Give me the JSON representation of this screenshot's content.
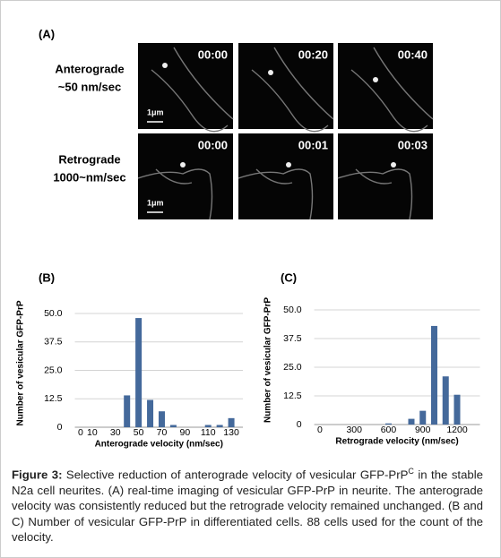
{
  "panel_a": {
    "label": "(A)",
    "rows": [
      {
        "title": [
          "Anterograde",
          "~50 nm/sec"
        ],
        "times": [
          "00:00",
          "00:20",
          "00:40"
        ],
        "scale": "1μm"
      },
      {
        "title": [
          "Retrograde",
          "1000~nm/sec"
        ],
        "times": [
          "00:00",
          "00:01",
          "00:03"
        ],
        "scale": "1μm"
      }
    ]
  },
  "chart_data": [
    {
      "type": "bar",
      "panel": "(B)",
      "y_label": "Number of vesicular GFP-PrP",
      "x_label": "Anterograde velocity (nm/sec)",
      "x": [
        40,
        50,
        60,
        70,
        80,
        110,
        120,
        130
      ],
      "values": [
        14,
        48,
        12,
        7,
        1,
        1,
        1,
        4
      ],
      "color": "#44699b",
      "xlim": [
        -5,
        140
      ],
      "xticks": [
        0,
        10,
        30,
        50,
        70,
        90,
        110,
        130
      ],
      "ylim": [
        0,
        50
      ],
      "yticks": [
        0,
        12.5,
        {
          "value": 25,
          "label": "25.0"
        },
        37.5,
        {
          "value": 50,
          "label": "50.0"
        }
      ],
      "grid": true
    },
    {
      "type": "bar",
      "panel": "(C)",
      "y_label": "Number of vesicular GFP-PrP",
      "x_label": "Retrograde velocity (nm/sec)",
      "x": [
        600,
        800,
        900,
        1000,
        1100,
        1200
      ],
      "values": [
        0.5,
        2.5,
        6,
        43,
        21,
        13
      ],
      "color": "#44699b",
      "xlim": [
        -50,
        1400
      ],
      "xticks": [
        0,
        300,
        600,
        900,
        1200
      ],
      "ylim": [
        0,
        50
      ],
      "yticks": [
        0,
        12.5,
        {
          "value": 25,
          "label": "25.0"
        },
        37.5,
        {
          "value": 50,
          "label": "50.0"
        }
      ],
      "grid": true
    }
  ],
  "caption": {
    "label": "Figure 3:",
    "text_before": " Selective reduction of anterograde velocity of vesicular GFP-PrP",
    "superscript": "C",
    "text_after": " in the stable N2a cell neurites. (A) real-time imaging of vesicular GFP-PrP in neurite. The anterograde velocity was consistently reduced but the retrograde velocity remained unchanged. (B and C) Number of vesicular GFP-PrP in differentiated cells. 88 cells used for the count of the velocity."
  }
}
